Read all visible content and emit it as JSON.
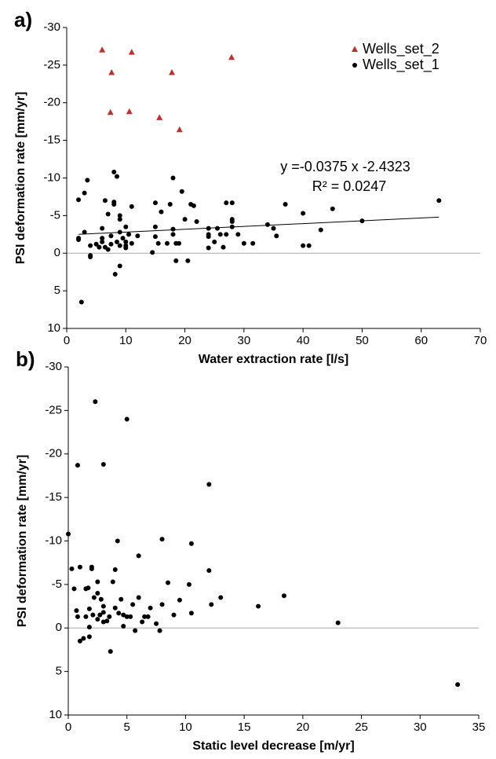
{
  "chart_data": [
    {
      "type": "scatter",
      "panel_label": "a)",
      "xlabel": "Water extraction rate [l/s]",
      "ylabel": "PSI deformation rate [mm/yr]",
      "xlim": [
        0,
        70
      ],
      "xticks": [
        0,
        10,
        20,
        30,
        40,
        50,
        60,
        70
      ],
      "ylim": [
        10,
        -30
      ],
      "yticks": [
        -30,
        -25,
        -20,
        -15,
        -10,
        -5,
        0,
        5,
        10
      ],
      "zero_line": true,
      "legend": "top-right",
      "series": [
        {
          "name": "Wells_set_2",
          "color": "#c0302c",
          "marker": "triangle",
          "x": [
            6.0,
            7.6,
            11.0,
            17.8,
            27.9,
            7.4,
            10.6,
            15.7,
            19.1
          ],
          "values": [
            -27.0,
            -24.0,
            -26.7,
            -24.0,
            -26.0,
            -18.7,
            -18.8,
            -18.0,
            -16.4
          ]
        },
        {
          "name": "Wells_set_1",
          "color": "#000000",
          "marker": "circle",
          "x": [
            2,
            2,
            2,
            2.5,
            3,
            3,
            3.5,
            4,
            4,
            4,
            5,
            5.5,
            6,
            6,
            6,
            6.5,
            6.5,
            7,
            7,
            7.5,
            7.5,
            8,
            8,
            8,
            8.2,
            8.5,
            8.5,
            9,
            9,
            9,
            9,
            9.5,
            9,
            10,
            10,
            10,
            10,
            10.5,
            11,
            11,
            12,
            14.5,
            15,
            15,
            15,
            15.5,
            16,
            17,
            17.5,
            18,
            18,
            18,
            18.5,
            18.5,
            19,
            19.5,
            20,
            20.5,
            21,
            21.5,
            22,
            24,
            24,
            24,
            24,
            25,
            25.5,
            26,
            26.5,
            27,
            27,
            28,
            28,
            28,
            28,
            29,
            30,
            31.5,
            34,
            35,
            35.5,
            37,
            40,
            40,
            41,
            43,
            45,
            50,
            63
          ],
          "values": [
            -7.1,
            -2,
            -1.8,
            6.5,
            -8,
            -2.8,
            -9.7,
            -1,
            0.3,
            0.5,
            -1.2,
            -0.8,
            -3.3,
            -2,
            -1.5,
            -7,
            -0.8,
            -0.5,
            -5.2,
            -2.3,
            -1.2,
            -6.8,
            -6.5,
            -10.8,
            2.8,
            -10.2,
            -1.5,
            -5,
            -4.5,
            -2.8,
            -1,
            -2,
            1.7,
            -3.5,
            -1.5,
            -1,
            -0.7,
            -2.5,
            -6.2,
            -1.3,
            -2.3,
            -0.1,
            -6.7,
            -3.5,
            -2.2,
            -1.3,
            -5.5,
            -1.3,
            -6.5,
            -10,
            -3.2,
            -2.5,
            1,
            -1.3,
            -1.3,
            -8.2,
            -4.5,
            1,
            -6.5,
            -6.3,
            -4.2,
            -3.3,
            -2.5,
            -2.2,
            -0.7,
            -1.5,
            -3.3,
            -2.5,
            -0.8,
            -6.7,
            -2.5,
            -6.7,
            -4.5,
            -4.2,
            -3.5,
            -2.5,
            -1.3,
            -1.3,
            -3.8,
            -3.3,
            -2.3,
            -6.5,
            -5.3,
            -1,
            -1,
            -3.1,
            -5.9,
            -4.3,
            -7
          ]
        }
      ],
      "trendline": {
        "slope": -0.0375,
        "intercept": -2.4323,
        "xrange": [
          2,
          63
        ]
      },
      "annotations": [
        "y =-0.0375 x -2.4323",
        "R² = 0.0247"
      ]
    },
    {
      "type": "scatter",
      "panel_label": "b)",
      "xlabel": "Static level decrease [m/yr]",
      "ylabel": "PSI deformation rate [mm/yr]",
      "xlim": [
        0,
        35
      ],
      "xticks": [
        0,
        5,
        10,
        15,
        20,
        25,
        30,
        35
      ],
      "ylim": [
        10,
        -30
      ],
      "yticks": [
        -30,
        -25,
        -20,
        -15,
        -10,
        -5,
        0,
        5,
        10
      ],
      "zero_line": true,
      "color": "#000000",
      "marker": "circle",
      "x": [
        0,
        0.3,
        0.5,
        0.7,
        0.8,
        0.8,
        1,
        1,
        1.3,
        1.5,
        1.5,
        1.7,
        1.8,
        1.8,
        1.8,
        2,
        2,
        2.1,
        2.2,
        2.3,
        2.5,
        2.5,
        2.5,
        2.7,
        2.8,
        3,
        3,
        3,
        3,
        3.3,
        3.5,
        3.6,
        3.8,
        4,
        4,
        4.2,
        4.3,
        4.5,
        4.7,
        4.7,
        5,
        5,
        5.3,
        5.5,
        5.7,
        6,
        6,
        6.3,
        6.5,
        6.8,
        7,
        7.5,
        7.8,
        8,
        8,
        8.5,
        9,
        9.5,
        10.3,
        10.5,
        10.5,
        12,
        12,
        12.2,
        13,
        16.2,
        18.4,
        23,
        33.2
      ],
      "values": [
        -10.8,
        -6.8,
        -4.5,
        -2,
        -1.3,
        -18.7,
        -7,
        1.5,
        1.2,
        -4.5,
        -1.3,
        -4.6,
        -0.1,
        -2.2,
        1,
        -6.8,
        -7,
        -1.5,
        -3.5,
        -26,
        -1,
        -4,
        -5.3,
        -1.5,
        -3.3,
        -18.8,
        -2.5,
        -0.7,
        -1.8,
        -0.8,
        -1.3,
        2.7,
        -5.3,
        -2.3,
        -6.7,
        -10,
        -1.7,
        -3.3,
        -1.5,
        -0.2,
        -1.3,
        -24,
        -1.3,
        -2.7,
        0.3,
        -3.5,
        -8.3,
        -0.7,
        -1.3,
        -1.3,
        -2.3,
        -0.5,
        0.3,
        -2.7,
        -10.2,
        -5.2,
        -1.5,
        -3.2,
        -5,
        -1.7,
        -9.7,
        -16.5,
        -6.6,
        -2.7,
        -3.5,
        -2.5,
        -3.7,
        -0.6,
        6.5
      ]
    }
  ]
}
